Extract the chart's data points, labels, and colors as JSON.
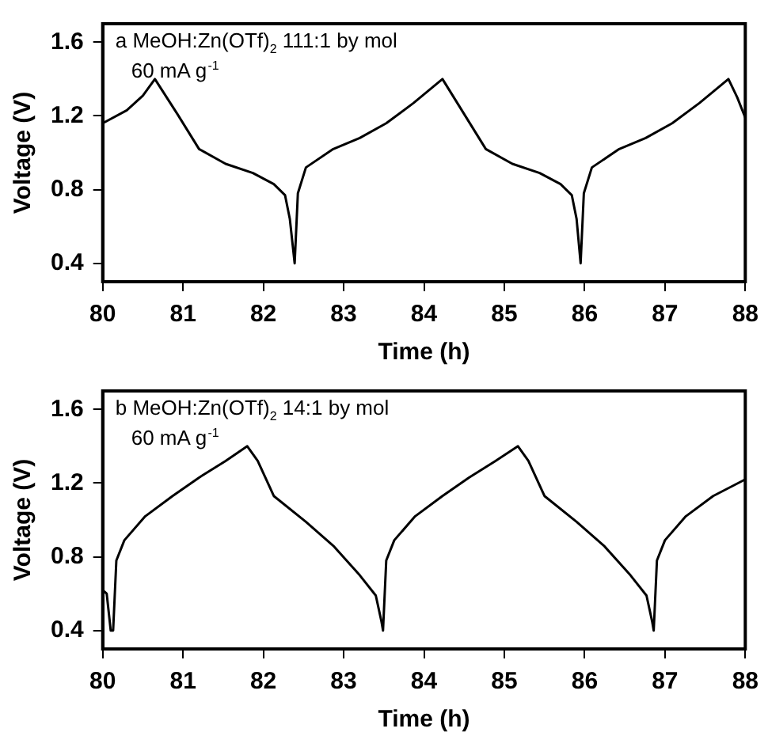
{
  "chart_data": [
    {
      "type": "line",
      "xlabel": "Time (h)",
      "ylabel": "Voltage (V)",
      "annotations": [
        "a MeOH:Zn(OTf)$_{2}$ 111:1 by mol",
        "60 mA g$^{-1}$"
      ],
      "xlim": [
        80,
        88
      ],
      "xticks": [
        80,
        81,
        82,
        83,
        84,
        85,
        86,
        87,
        88
      ],
      "ylim": [
        0.3,
        1.7
      ],
      "yticks": [
        0.4,
        0.8,
        1.2,
        1.6
      ],
      "grid": false,
      "legend": false,
      "marker": "none",
      "line_style": "solid",
      "series": [
        {
          "color": "#000000",
          "x": [
            80,
            80.3,
            80.5,
            80.65,
            80.93,
            81.2,
            81.53,
            81.87,
            82.13,
            82.27,
            82.33,
            82.39,
            82.43,
            82.53,
            82.87,
            83.2,
            83.53,
            83.87,
            84.23,
            84.5,
            84.77,
            85.1,
            85.44,
            85.7,
            85.84,
            85.9,
            85.95,
            85.99,
            86.09,
            86.43,
            86.76,
            87.09,
            87.43,
            87.79,
            87.9,
            88
          ],
          "values": [
            1.16,
            1.23,
            1.31,
            1.4,
            1.21,
            1.02,
            0.94,
            0.89,
            0.83,
            0.77,
            0.64,
            0.4,
            0.78,
            0.92,
            1.02,
            1.08,
            1.16,
            1.27,
            1.4,
            1.21,
            1.02,
            0.94,
            0.89,
            0.83,
            0.77,
            0.64,
            0.4,
            0.78,
            0.92,
            1.02,
            1.08,
            1.16,
            1.27,
            1.4,
            1.3,
            1.19
          ]
        }
      ]
    },
    {
      "type": "line",
      "xlabel": "Time (h)",
      "ylabel": "Voltage (V)",
      "annotations": [
        "b MeOH:Zn(OTf)$_{2}$ 14:1 by mol",
        "60 mA g$^{-1}$"
      ],
      "xlim": [
        80,
        88
      ],
      "xticks": [
        80,
        81,
        82,
        83,
        84,
        85,
        86,
        87,
        88
      ],
      "ylim": [
        0.3,
        1.7
      ],
      "yticks": [
        0.4,
        0.8,
        1.2,
        1.6
      ],
      "grid": false,
      "legend": false,
      "marker": "none",
      "line_style": "solid",
      "series": [
        {
          "color": "#000000",
          "x": [
            80,
            80.05,
            80.1,
            80.13,
            80.17,
            80.27,
            80.53,
            80.87,
            81.2,
            81.53,
            81.8,
            81.93,
            82.13,
            82.53,
            82.87,
            83.2,
            83.4,
            83.47,
            83.49,
            83.53,
            83.63,
            83.89,
            84.23,
            84.56,
            84.89,
            85.17,
            85.3,
            85.5,
            85.9,
            86.24,
            86.57,
            86.77,
            86.84,
            86.86,
            86.9,
            87,
            87.26,
            87.6,
            88
          ],
          "values": [
            0.62,
            0.6,
            0.4,
            0.4,
            0.78,
            0.89,
            1.02,
            1.13,
            1.23,
            1.32,
            1.4,
            1.32,
            1.13,
            0.99,
            0.86,
            0.7,
            0.59,
            0.45,
            0.4,
            0.78,
            0.89,
            1.02,
            1.13,
            1.23,
            1.32,
            1.4,
            1.32,
            1.13,
            0.99,
            0.86,
            0.7,
            0.59,
            0.45,
            0.4,
            0.78,
            0.89,
            1.02,
            1.13,
            1.22
          ]
        }
      ]
    }
  ]
}
